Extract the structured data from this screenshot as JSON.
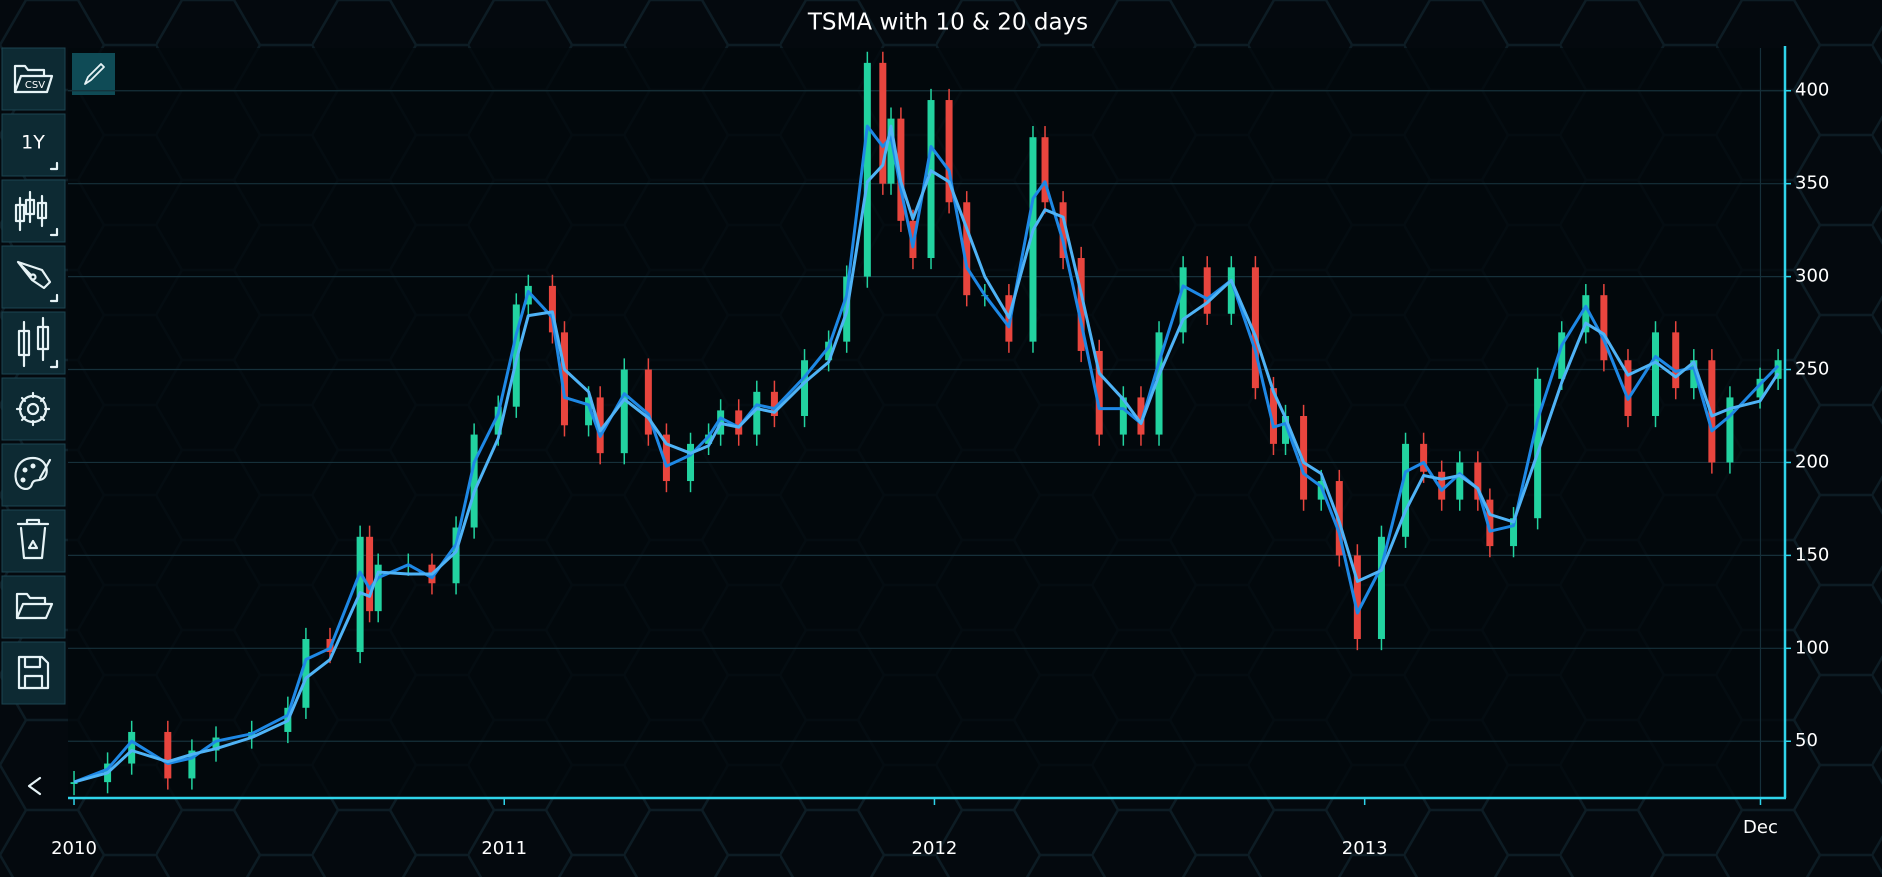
{
  "chart_data": {
    "type": "candlestick",
    "title": "TSMA with 10 & 20 days",
    "x": [
      2010.0,
      2010.078,
      2010.134,
      2010.218,
      2010.274,
      2010.33,
      2010.413,
      2010.497,
      2010.539,
      2010.595,
      2010.665,
      2010.687,
      2010.707,
      2010.777,
      2010.832,
      2010.888,
      2010.93,
      2010.986,
      2011.028,
      2011.056,
      2011.112,
      2011.14,
      2011.196,
      2011.223,
      2011.279,
      2011.335,
      2011.377,
      2011.433,
      2011.475,
      2011.503,
      2011.545,
      2011.587,
      2011.628,
      2011.698,
      2011.754,
      2011.796,
      2011.844,
      2011.88,
      2011.899,
      2011.922,
      2011.95,
      2011.992,
      2012.034,
      2012.075,
      2012.117,
      2012.173,
      2012.229,
      2012.257,
      2012.299,
      2012.341,
      2012.383,
      2012.439,
      2012.48,
      2012.522,
      2012.578,
      2012.634,
      2012.69,
      2012.746,
      2012.788,
      2012.816,
      2012.858,
      2012.899,
      2012.941,
      2012.983,
      2013.039,
      2013.095,
      2013.137,
      2013.179,
      2013.221,
      2013.263,
      2013.291,
      2013.346,
      2013.402,
      2013.458,
      2013.514,
      2013.556,
      2013.612,
      2013.676,
      2013.723,
      2013.765,
      2013.807,
      2013.849,
      2013.919,
      2013.961
    ],
    "open": [
      27,
      28,
      38,
      55,
      30,
      45,
      52,
      55,
      68,
      105,
      98,
      160,
      120,
      145,
      145,
      135,
      165,
      215,
      230,
      285,
      295,
      270,
      220,
      235,
      205,
      250,
      215,
      190,
      210,
      215,
      228,
      215,
      238,
      225,
      255,
      265,
      300,
      415,
      350,
      385,
      330,
      310,
      395,
      340,
      290,
      290,
      265,
      375,
      340,
      310,
      260,
      215,
      235,
      215,
      270,
      305,
      280,
      305,
      240,
      210,
      225,
      180,
      190,
      150,
      105,
      160,
      210,
      195,
      180,
      200,
      180,
      155,
      170,
      245,
      270,
      290,
      255,
      225,
      270,
      240,
      255,
      200,
      235,
      245
    ],
    "high": [
      34,
      44,
      61,
      61,
      51,
      58,
      61,
      74,
      111,
      111,
      166,
      166,
      151,
      151,
      151,
      171,
      221,
      236,
      291,
      301,
      301,
      276,
      241,
      241,
      256,
      256,
      221,
      216,
      221,
      234,
      234,
      244,
      244,
      261,
      271,
      306,
      421,
      421,
      391,
      391,
      336,
      401,
      401,
      346,
      296,
      296,
      381,
      381,
      346,
      316,
      266,
      241,
      241,
      276,
      311,
      311,
      311,
      311,
      246,
      231,
      231,
      196,
      196,
      156,
      166,
      216,
      216,
      201,
      206,
      206,
      186,
      176,
      251,
      276,
      296,
      296,
      261,
      276,
      276,
      261,
      261,
      241,
      251,
      261
    ],
    "low": [
      21,
      22,
      32,
      24,
      24,
      39,
      46,
      49,
      62,
      92,
      92,
      114,
      114,
      139,
      129,
      129,
      159,
      209,
      224,
      279,
      264,
      214,
      214,
      199,
      199,
      209,
      184,
      184,
      204,
      209,
      209,
      209,
      219,
      219,
      249,
      259,
      294,
      344,
      344,
      324,
      304,
      304,
      334,
      284,
      284,
      259,
      259,
      334,
      304,
      254,
      209,
      209,
      209,
      209,
      264,
      274,
      274,
      234,
      204,
      204,
      174,
      174,
      144,
      99,
      99,
      154,
      189,
      174,
      174,
      174,
      149,
      149,
      164,
      239,
      264,
      249,
      219,
      219,
      234,
      234,
      194,
      194,
      229,
      239
    ],
    "close": [
      28,
      38,
      55,
      30,
      45,
      52,
      55,
      68,
      105,
      98,
      160,
      120,
      145,
      145,
      135,
      165,
      215,
      230,
      285,
      295,
      270,
      220,
      235,
      205,
      250,
      215,
      190,
      210,
      215,
      228,
      215,
      238,
      225,
      255,
      265,
      300,
      415,
      350,
      385,
      330,
      310,
      395,
      340,
      290,
      290,
      265,
      375,
      340,
      310,
      260,
      215,
      235,
      215,
      270,
      305,
      280,
      305,
      240,
      210,
      225,
      180,
      190,
      150,
      105,
      160,
      210,
      195,
      180,
      200,
      180,
      155,
      170,
      245,
      270,
      290,
      255,
      225,
      270,
      240,
      255,
      200,
      235,
      245,
      255
    ],
    "up_color": "#22d3a0",
    "down_color": "#e8453e",
    "series": [
      {
        "color": "#1e88e5",
        "values": [
          28,
          35,
          50,
          38,
          41,
          50,
          54,
          64,
          94,
          100,
          141,
          132,
          138,
          145,
          138,
          156,
          200,
          226,
          269,
          292,
          278,
          235,
          231,
          214,
          237,
          226,
          198,
          204,
          214,
          224,
          219,
          231,
          229,
          246,
          262,
          290,
          381,
          370,
          375,
          347,
          316,
          370,
          357,
          305,
          290,
          273,
          342,
          351,
          319,
          275,
          229,
          229,
          221,
          254,
          295,
          288,
          298,
          260,
          219,
          221,
          194,
          187,
          162,
          119,
          144,
          195,
          200,
          185,
          194,
          186,
          163,
          166,
          223,
          263,
          284,
          266,
          234,
          257,
          249,
          251,
          217,
          225,
          242,
          252
        ]
      },
      {
        "color": "#4fb3f6",
        "values": [
          28,
          33,
          45,
          39,
          43,
          46,
          52,
          61,
          84,
          94,
          130,
          128,
          141,
          140,
          140,
          152,
          184,
          213,
          255,
          279,
          281,
          250,
          238,
          217,
          234,
          224,
          210,
          205,
          209,
          221,
          219,
          229,
          227,
          243,
          254,
          281,
          351,
          360,
          381,
          351,
          331,
          357,
          351,
          326,
          300,
          278,
          325,
          336,
          332,
          291,
          248,
          234,
          221,
          247,
          277,
          286,
          298,
          268,
          238,
          224,
          200,
          194,
          168,
          136,
          142,
          174,
          193,
          191,
          193,
          186,
          172,
          168,
          205,
          243,
          275,
          269,
          247,
          254,
          246,
          254,
          225,
          229,
          233,
          248
        ]
      }
    ],
    "xlim": [
      2009.986,
      2013.977
    ],
    "xticks": [
      2010,
      2011,
      2012,
      2013,
      {
        "value": 2013.92,
        "label": "Dec"
      }
    ],
    "ylim": [
      20,
      423
    ],
    "yticks": [
      50,
      100,
      150,
      200,
      250,
      300,
      350,
      400
    ],
    "grid": true
  },
  "toolbar": {
    "file": "CSV",
    "range": "1Y"
  }
}
